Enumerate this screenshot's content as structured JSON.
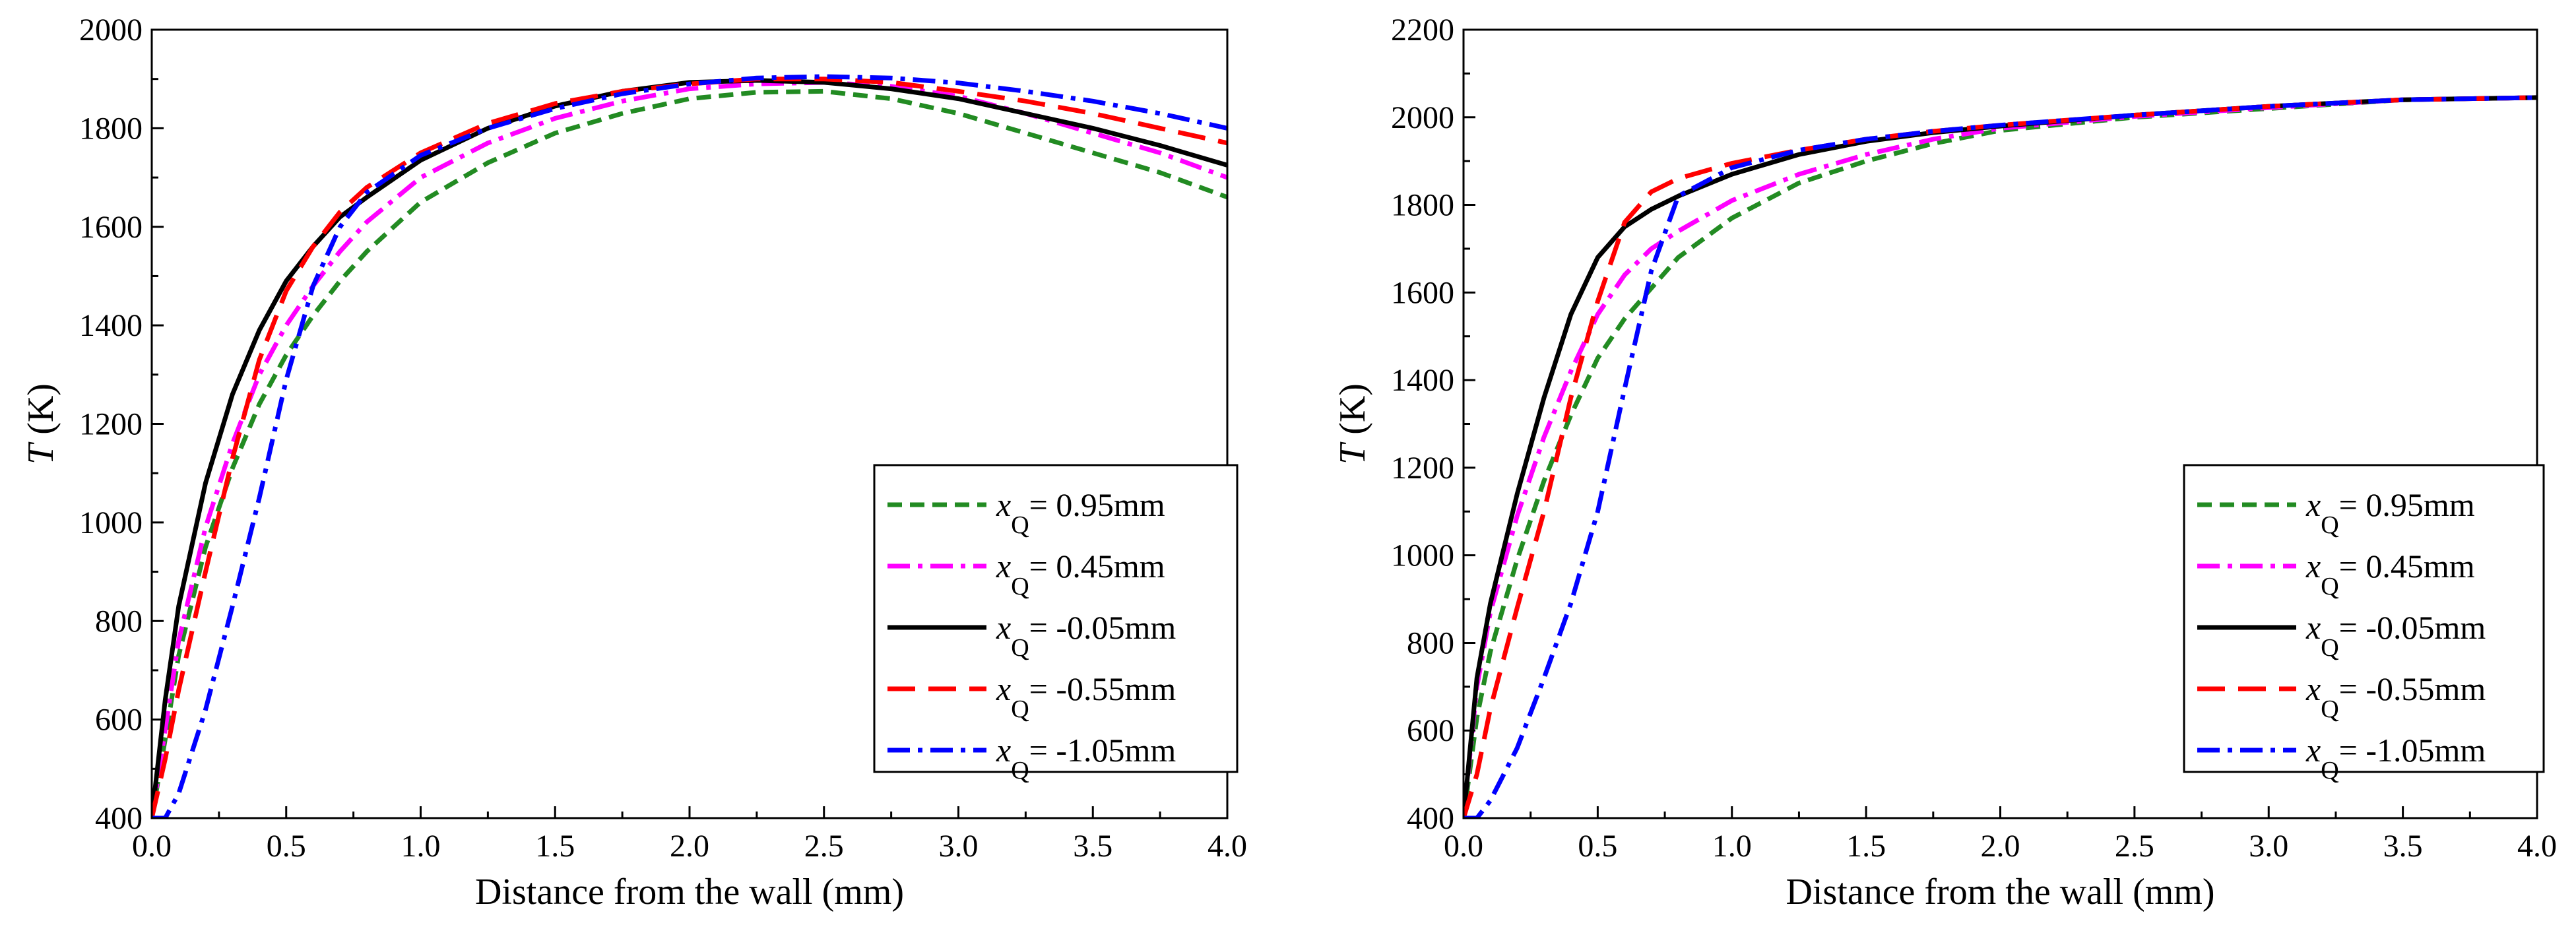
{
  "chart_data": [
    {
      "type": "line",
      "panel": "left",
      "ylabel_italic": "T",
      "ylabel_rest": " (K)",
      "xlabel": "Distance from the wall (mm)",
      "xlim": [
        0,
        4
      ],
      "ylim": [
        400,
        2000
      ],
      "xticks": [
        "0.0",
        "0.5",
        "1.0",
        "1.5",
        "2.0",
        "2.5",
        "3.0",
        "3.5",
        "4.0"
      ],
      "yticks": [
        "400",
        "600",
        "800",
        "1000",
        "1200",
        "1400",
        "1600",
        "1800",
        "2000"
      ],
      "legend_position": "bottom-right",
      "series": [
        {
          "name": "= 0.95mm",
          "color": "#228B22",
          "dash": "short-dash",
          "x": [
            0,
            0.05,
            0.1,
            0.2,
            0.3,
            0.4,
            0.5,
            0.6,
            0.7,
            0.8,
            1.0,
            1.25,
            1.5,
            1.75,
            2.0,
            2.25,
            2.5,
            2.75,
            3.0,
            3.25,
            3.5,
            3.75,
            4.0
          ],
          "y": [
            400,
            560,
            730,
            950,
            1110,
            1240,
            1340,
            1420,
            1490,
            1550,
            1650,
            1730,
            1790,
            1830,
            1860,
            1873,
            1875,
            1860,
            1830,
            1790,
            1750,
            1710,
            1660
          ]
        },
        {
          "name": "= 0.45mm",
          "color": "#FF00FF",
          "dash": "dash-dot",
          "x": [
            0,
            0.05,
            0.1,
            0.2,
            0.3,
            0.4,
            0.5,
            0.6,
            0.7,
            0.8,
            1.0,
            1.25,
            1.5,
            1.75,
            2.0,
            2.25,
            2.5,
            2.75,
            3.0,
            3.25,
            3.5,
            3.75,
            4.0
          ],
          "y": [
            400,
            580,
            760,
            990,
            1160,
            1300,
            1400,
            1480,
            1550,
            1610,
            1700,
            1770,
            1820,
            1855,
            1880,
            1890,
            1893,
            1885,
            1865,
            1830,
            1790,
            1750,
            1700
          ]
        },
        {
          "name": "= -0.05mm",
          "color": "#000000",
          "dash": "solid",
          "x": [
            0,
            0.05,
            0.1,
            0.2,
            0.3,
            0.4,
            0.5,
            0.6,
            0.7,
            0.8,
            1.0,
            1.25,
            1.5,
            1.75,
            2.0,
            2.25,
            2.5,
            2.75,
            3.0,
            3.25,
            3.5,
            3.75,
            4.0
          ],
          "y": [
            400,
            640,
            830,
            1080,
            1260,
            1390,
            1490,
            1560,
            1620,
            1660,
            1735,
            1800,
            1845,
            1875,
            1893,
            1897,
            1893,
            1880,
            1860,
            1830,
            1800,
            1765,
            1725
          ]
        },
        {
          "name": "= -0.55mm",
          "color": "#FF0000",
          "dash": "long-dash",
          "x": [
            0,
            0.05,
            0.1,
            0.2,
            0.3,
            0.4,
            0.5,
            0.6,
            0.7,
            0.8,
            1.0,
            1.25,
            1.5,
            1.75,
            2.0,
            2.25,
            2.5,
            2.75,
            3.0,
            3.25,
            3.5,
            3.75,
            4.0
          ],
          "y": [
            400,
            520,
            660,
            900,
            1130,
            1330,
            1470,
            1560,
            1630,
            1680,
            1750,
            1810,
            1850,
            1875,
            1890,
            1900,
            1900,
            1893,
            1875,
            1855,
            1830,
            1800,
            1770
          ]
        },
        {
          "name": "= -1.05mm",
          "color": "#0000FF",
          "dash": "dash-dot",
          "x": [
            0,
            0.05,
            0.1,
            0.2,
            0.3,
            0.4,
            0.5,
            0.6,
            0.7,
            0.8,
            1.0,
            1.25,
            1.5,
            1.75,
            2.0,
            2.25,
            2.5,
            2.75,
            3.0,
            3.25,
            3.5,
            3.75,
            4.0
          ],
          "y": [
            400,
            400,
            450,
            620,
            830,
            1050,
            1290,
            1480,
            1600,
            1670,
            1745,
            1800,
            1840,
            1870,
            1890,
            1902,
            1905,
            1902,
            1892,
            1875,
            1855,
            1830,
            1800
          ]
        }
      ]
    },
    {
      "type": "line",
      "panel": "right",
      "ylabel_italic": "T",
      "ylabel_rest": " (K)",
      "xlabel": "Distance from the wall (mm)",
      "xlim": [
        0,
        4
      ],
      "ylim": [
        400,
        2200
      ],
      "xticks": [
        "0.0",
        "0.5",
        "1.0",
        "1.5",
        "2.0",
        "2.5",
        "3.0",
        "3.5",
        "4.0"
      ],
      "yticks": [
        "400",
        "600",
        "800",
        "1000",
        "1200",
        "1400",
        "1600",
        "1800",
        "2000",
        "2200"
      ],
      "legend_position": "bottom-right",
      "series": [
        {
          "name": "= 0.95mm",
          "color": "#228B22",
          "dash": "short-dash",
          "x": [
            0,
            0.05,
            0.1,
            0.2,
            0.3,
            0.4,
            0.5,
            0.6,
            0.7,
            0.8,
            1.0,
            1.25,
            1.5,
            1.75,
            2.0,
            2.5,
            3.0,
            3.5,
            4.0
          ],
          "y": [
            400,
            630,
            780,
            990,
            1170,
            1320,
            1450,
            1540,
            1610,
            1680,
            1770,
            1850,
            1900,
            1940,
            1970,
            2000,
            2020,
            2040,
            2045
          ]
        },
        {
          "name": "= 0.45mm",
          "color": "#FF00FF",
          "dash": "dash-dot",
          "x": [
            0,
            0.05,
            0.1,
            0.2,
            0.3,
            0.4,
            0.5,
            0.6,
            0.7,
            0.8,
            1.0,
            1.25,
            1.5,
            1.75,
            2.0,
            2.5,
            3.0,
            3.5,
            4.0
          ],
          "y": [
            400,
            700,
            870,
            1090,
            1270,
            1420,
            1550,
            1640,
            1700,
            1740,
            1810,
            1870,
            1915,
            1950,
            1975,
            2002,
            2022,
            2040,
            2045
          ]
        },
        {
          "name": "= -0.05mm",
          "color": "#000000",
          "dash": "solid",
          "x": [
            0,
            0.05,
            0.1,
            0.2,
            0.3,
            0.4,
            0.5,
            0.6,
            0.7,
            0.8,
            1.0,
            1.25,
            1.5,
            1.75,
            2.0,
            2.5,
            3.0,
            3.5,
            4.0
          ],
          "y": [
            400,
            720,
            890,
            1140,
            1360,
            1550,
            1680,
            1750,
            1790,
            1820,
            1870,
            1915,
            1945,
            1965,
            1980,
            2005,
            2025,
            2040,
            2045
          ]
        },
        {
          "name": "= -0.55mm",
          "color": "#FF0000",
          "dash": "long-dash",
          "x": [
            0,
            0.05,
            0.1,
            0.2,
            0.3,
            0.4,
            0.5,
            0.6,
            0.7,
            0.8,
            1.0,
            1.25,
            1.5,
            1.75,
            2.0,
            2.5,
            3.0,
            3.5,
            4.0
          ],
          "y": [
            400,
            500,
            650,
            880,
            1100,
            1360,
            1580,
            1760,
            1830,
            1860,
            1895,
            1925,
            1950,
            1968,
            1982,
            2005,
            2025,
            2040,
            2045
          ]
        },
        {
          "name": "= -1.05mm",
          "color": "#0000FF",
          "dash": "dash-dot",
          "x": [
            0,
            0.05,
            0.1,
            0.2,
            0.3,
            0.4,
            0.5,
            0.6,
            0.7,
            0.8,
            1.0,
            1.25,
            1.5,
            1.75,
            2.0,
            2.5,
            3.0,
            3.5,
            4.0
          ],
          "y": [
            400,
            400,
            440,
            560,
            720,
            890,
            1100,
            1380,
            1650,
            1820,
            1885,
            1925,
            1950,
            1968,
            1982,
            2005,
            2025,
            2040,
            2045
          ]
        }
      ]
    }
  ]
}
